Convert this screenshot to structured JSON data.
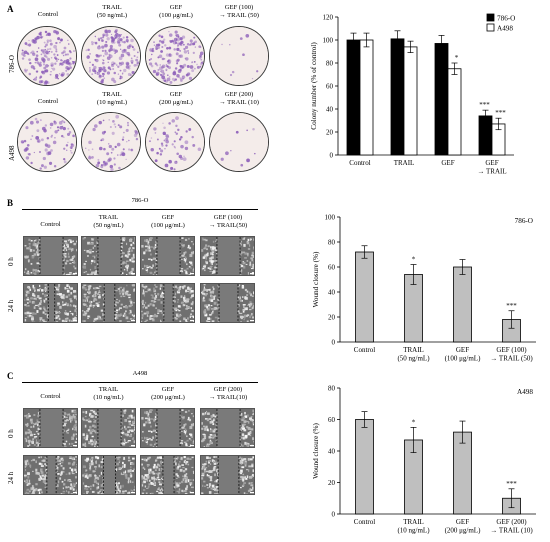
{
  "panel_A": {
    "letter": "A",
    "row_labels": [
      "786-O",
      "A498"
    ],
    "row1_headers": [
      "Control",
      "TRAIL\n(50 ng/mL)",
      "GEF\n(100 μg/mL)",
      "GEF (100)\n→ TRAIL (50)"
    ],
    "row2_headers": [
      "Control",
      "TRAIL\n(10 ng/mL)",
      "GEF\n(200 μg/mL)",
      "GEF (200)\n→ TRAIL (10)"
    ],
    "dish_colonies_786O": [
      1.0,
      1.01,
      0.97,
      0.34
    ],
    "dish_colonies_A498": [
      1.0,
      0.94,
      0.75,
      0.27
    ]
  },
  "panel_B": {
    "letter": "B",
    "cell_line": "786-O",
    "headers": [
      "Control",
      "TRAIL\n(50 ng/mL)",
      "GEF\n(100 μg/mL)",
      "GEF (100)\n→ TRAIL(50)"
    ],
    "time_labels": [
      "0 h",
      "24 h"
    ]
  },
  "panel_C": {
    "letter": "C",
    "cell_line": "A498",
    "headers": [
      "Control",
      "TRAIL\n(10 ng/mL)",
      "GEF\n(200 μg/mL)",
      "GEF (200)\n→ TRAIL(10)"
    ],
    "time_labels": [
      "0 h",
      "24 h"
    ]
  },
  "colors": {
    "black_bar": "#000000",
    "white_bar": "#ffffff",
    "gray_bar": "#bfbfbf",
    "stain": "#8a5bb8",
    "dish_bg": "#f4ecea"
  },
  "chart_data": [
    {
      "type": "bar",
      "categories": [
        "Control",
        "TRAIL",
        "GEF",
        "GEF\n→ TRAIL"
      ],
      "series": [
        {
          "name": "786-O",
          "values": [
            100,
            101,
            97,
            34
          ],
          "errors": [
            6,
            7,
            7,
            5
          ],
          "sig": [
            "",
            "",
            "",
            "***"
          ]
        },
        {
          "name": "A498",
          "values": [
            100,
            94,
            75,
            27
          ],
          "errors": [
            6,
            5,
            5,
            5
          ],
          "sig": [
            "",
            "",
            "*",
            "***"
          ]
        }
      ],
      "ylabel": "Colony number (% of control)",
      "ylim": [
        0,
        120
      ],
      "yticks": [
        0,
        20,
        40,
        60,
        80,
        100,
        120
      ],
      "legend": "top-right"
    },
    {
      "type": "bar",
      "categories": [
        "Control",
        "TRAIL\n(50 ng/mL)",
        "GEF\n(100 μg/mL)",
        "GEF (100)\n→ TRAIL (50)"
      ],
      "values": [
        72,
        54,
        60,
        18
      ],
      "errors": [
        5,
        8,
        6,
        7
      ],
      "sig": [
        "",
        "*",
        "",
        "***"
      ],
      "ylabel": "Wound closure (%)",
      "annotation": "786-O",
      "ylim": [
        0,
        100
      ],
      "yticks": [
        0,
        20,
        40,
        60,
        80,
        100
      ]
    },
    {
      "type": "bar",
      "categories": [
        "Control",
        "TRAIL\n(10 ng/mL)",
        "GEF\n(200 μg/mL)",
        "GEF (200)\n→ TRAIL (10)"
      ],
      "values": [
        60,
        47,
        52,
        10
      ],
      "errors": [
        5,
        8,
        7,
        6
      ],
      "sig": [
        "",
        "*",
        "",
        "***"
      ],
      "ylabel": "Wound closure (%)",
      "annotation": "A498",
      "ylim": [
        0,
        80
      ],
      "yticks": [
        0,
        20,
        40,
        60,
        80
      ]
    }
  ]
}
